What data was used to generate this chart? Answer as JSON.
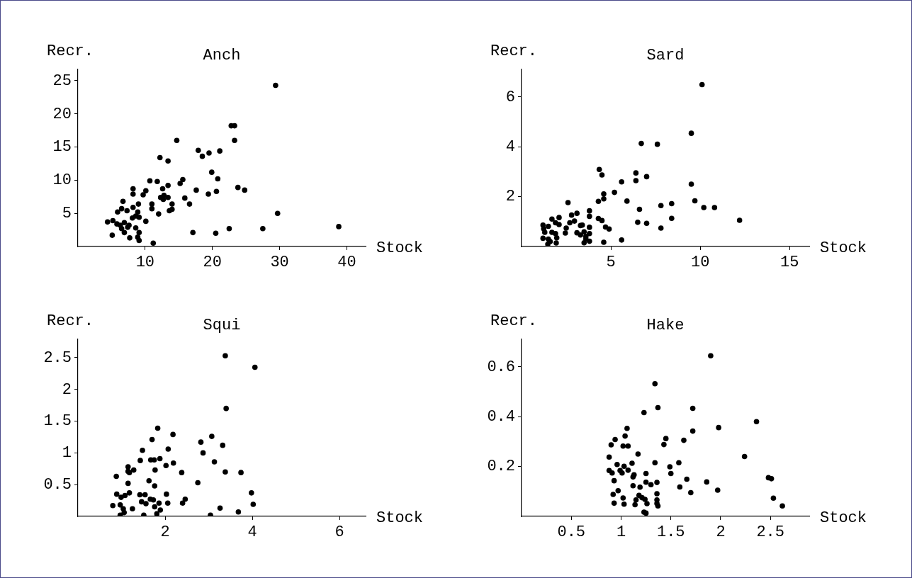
{
  "chart_data": [
    {
      "type": "scatter",
      "title": "Anch",
      "xlabel": "Stock",
      "ylabel": "Recr.",
      "color": "#000000",
      "marker": "circle",
      "xlim": [
        0,
        42.8
      ],
      "ylim": [
        0,
        26.7
      ],
      "xticks": [
        10,
        20,
        30,
        40
      ],
      "yticks": [
        5,
        10,
        15,
        20,
        25
      ],
      "x": [
        29.4,
        22.8,
        23.3,
        23.3,
        14.7,
        17.9,
        18.5,
        19.5,
        21.1,
        12.2,
        13.4,
        19.9,
        20.8,
        10.7,
        11.8,
        15.2,
        15.6,
        13.4,
        12.6,
        8.2,
        8.2,
        10.1,
        9.7,
        23.8,
        24.8,
        17.6,
        19.4,
        20.6,
        12.3,
        12.8,
        13.4,
        12.7,
        15.9,
        16.6,
        6.7,
        9.0,
        11.0,
        11.0,
        14.0,
        13.6,
        14.0,
        12.0,
        8.2,
        5.9,
        6.5,
        7.3,
        8.9,
        4.4,
        5.2,
        5.8,
        6.3,
        6.9,
        7.6,
        8.1,
        8.6,
        9.1,
        10.1,
        6.5,
        7.4,
        8.6,
        5.1,
        6.9,
        9.1,
        7.7,
        8.9,
        17.1,
        20.5,
        22.5,
        27.5,
        29.7,
        38.8,
        9.1,
        11.2
      ],
      "values": [
        24.3,
        18.2,
        18.2,
        16.0,
        16.0,
        14.5,
        13.6,
        14.1,
        14.4,
        13.4,
        12.9,
        11.2,
        10.2,
        9.9,
        9.8,
        9.5,
        10.1,
        9.2,
        8.7,
        8.7,
        7.9,
        8.4,
        7.8,
        8.9,
        8.5,
        8.5,
        7.9,
        8.3,
        7.4,
        7.7,
        7.4,
        7.1,
        7.3,
        6.4,
        6.8,
        6.4,
        6.4,
        5.7,
        6.4,
        5.4,
        5.6,
        4.9,
        5.9,
        5.2,
        5.7,
        5.4,
        5.2,
        3.7,
        3.9,
        3.4,
        3.2,
        3.6,
        3.2,
        4.3,
        4.6,
        4.4,
        3.8,
        2.7,
        2.9,
        2.8,
        1.7,
        2.1,
        2.1,
        1.3,
        1.4,
        2.1,
        2.0,
        2.7,
        2.7,
        5.0,
        3.0,
        0.9,
        0.5
      ]
    },
    {
      "type": "scatter",
      "title": "Sard",
      "xlabel": "Stock",
      "ylabel": "Recr.",
      "color": "#000000",
      "marker": "circle",
      "xlim": [
        0,
        16.1
      ],
      "ylim": [
        0,
        7.1
      ],
      "xticks": [
        5,
        10,
        15
      ],
      "yticks": [
        2,
        4,
        6
      ],
      "x": [
        10.1,
        9.5,
        6.7,
        7.6,
        4.35,
        4.5,
        6.4,
        6.4,
        7.0,
        5.6,
        9.5,
        5.2,
        4.6,
        4.6,
        4.3,
        5.9,
        9.7,
        2.6,
        7.8,
        8.4,
        10.2,
        10.8,
        6.6,
        3.8,
        3.8,
        3.1,
        2.8,
        2.1,
        1.7,
        4.3,
        4.5,
        8.4,
        12.2,
        6.5,
        7.0,
        2.7,
        1.9,
        2.1,
        2.96,
        3.3,
        3.4,
        1.2,
        1.5,
        2.5,
        4.7,
        4.9,
        7.8,
        3.8,
        1.24,
        1.3,
        1.7,
        1.9,
        2.45,
        3.1,
        3.5,
        3.8,
        3.3,
        3.6,
        1.2,
        1.5,
        1.97,
        3.6,
        5.6,
        1.47,
        1.94,
        3.8,
        4.6,
        1.6,
        3.5
      ],
      "values": [
        6.49,
        4.54,
        4.13,
        4.1,
        3.09,
        2.87,
        2.95,
        2.64,
        2.8,
        2.59,
        2.5,
        2.17,
        2.11,
        1.91,
        1.81,
        1.82,
        1.83,
        1.76,
        1.64,
        1.72,
        1.56,
        1.56,
        1.49,
        1.43,
        1.21,
        1.33,
        1.26,
        1.16,
        1.1,
        1.12,
        1.04,
        1.13,
        1.05,
        0.97,
        0.93,
        0.95,
        0.95,
        0.88,
        1.02,
        0.84,
        0.86,
        0.86,
        0.81,
        0.74,
        0.78,
        0.7,
        0.74,
        0.77,
        0.71,
        0.57,
        0.57,
        0.52,
        0.54,
        0.55,
        0.59,
        0.52,
        0.46,
        0.4,
        0.33,
        0.3,
        0.35,
        0.3,
        0.26,
        0.09,
        0.14,
        0.21,
        0.17,
        0.2,
        0.15
      ]
    },
    {
      "type": "scatter",
      "title": "Squi",
      "xlabel": "Stock",
      "ylabel": "Recr.",
      "color": "#000000",
      "marker": "circle",
      "xlim": [
        0,
        6.6
      ],
      "ylim": [
        0,
        2.79
      ],
      "xticks": [
        2,
        4,
        6
      ],
      "yticks": [
        0.5,
        1,
        1.5,
        2,
        2.5
      ],
      "x": [
        3.38,
        4.06,
        3.4,
        1.83,
        2.18,
        3.07,
        1.7,
        2.82,
        3.32,
        1.48,
        2.07,
        2.87,
        1.43,
        1.67,
        1.75,
        1.88,
        2.19,
        3.13,
        2.02,
        1.15,
        1.15,
        1.18,
        1.28,
        1.77,
        2.38,
        3.38,
        3.74,
        0.88,
        1.15,
        1.63,
        1.76,
        2.75,
        0.89,
        0.99,
        1.08,
        1.18,
        1.42,
        1.54,
        2.03,
        3.98,
        1.46,
        1.56,
        1.66,
        1.73,
        1.86,
        2.06,
        2.4,
        2.46,
        0.8,
        0.97,
        1.04,
        1.25,
        1.76,
        1.89,
        3.26,
        4.02,
        3.68,
        1.06,
        0.97,
        1.51,
        1.81,
        3.04
      ],
      "values": [
        2.53,
        2.35,
        1.7,
        1.39,
        1.29,
        1.26,
        1.21,
        1.17,
        1.12,
        1.04,
        1.06,
        1.0,
        0.88,
        0.89,
        0.89,
        0.91,
        0.84,
        0.86,
        0.8,
        0.78,
        0.71,
        0.69,
        0.73,
        0.73,
        0.69,
        0.7,
        0.69,
        0.63,
        0.52,
        0.56,
        0.48,
        0.53,
        0.35,
        0.3,
        0.33,
        0.37,
        0.34,
        0.34,
        0.35,
        0.37,
        0.23,
        0.2,
        0.27,
        0.26,
        0.21,
        0.21,
        0.21,
        0.27,
        0.17,
        0.18,
        0.12,
        0.12,
        0.15,
        0.1,
        0.13,
        0.19,
        0.07,
        0.06,
        0.02,
        0.02,
        0.04,
        0.02
      ]
    },
    {
      "type": "scatter",
      "title": "Hake",
      "xlabel": "Stock",
      "ylabel": "Recr.",
      "color": "#000000",
      "marker": "circle",
      "xlim": [
        0,
        2.89
      ],
      "ylim": [
        0,
        0.71
      ],
      "xticks": [
        0.5,
        1,
        1.5,
        2,
        2.5
      ],
      "yticks": [
        0.2,
        0.4,
        0.6
      ],
      "x": [
        1.9,
        1.34,
        1.37,
        1.23,
        1.72,
        2.36,
        1.06,
        1.98,
        1.04,
        1.72,
        0.94,
        1.45,
        0.9,
        1.02,
        1.07,
        1.43,
        1.63,
        1.17,
        0.88,
        2.24,
        1.34,
        1.58,
        1.11,
        0.96,
        1.03,
        0.88,
        0.91,
        0.99,
        1.01,
        1.07,
        1.49,
        1.5,
        1.13,
        1.12,
        1.25,
        2.48,
        2.51,
        0.93,
        1.66,
        1.86,
        1.25,
        1.3,
        1.36,
        1.12,
        1.19,
        1.59,
        0.97,
        1.97,
        1.7,
        0.92,
        1.18,
        1.36,
        1.21,
        1.24,
        1.02,
        2.53,
        1.15,
        1.26,
        0.93,
        1.03,
        1.14,
        1.36,
        1.36,
        1.37,
        2.62,
        1.23,
        1.25
      ],
      "values": [
        0.644,
        0.532,
        0.436,
        0.416,
        0.433,
        0.38,
        0.353,
        0.356,
        0.322,
        0.342,
        0.308,
        0.312,
        0.287,
        0.282,
        0.282,
        0.288,
        0.305,
        0.25,
        0.238,
        0.24,
        0.215,
        0.215,
        0.213,
        0.208,
        0.201,
        0.184,
        0.174,
        0.184,
        0.174,
        0.185,
        0.199,
        0.172,
        0.167,
        0.158,
        0.172,
        0.155,
        0.151,
        0.143,
        0.149,
        0.138,
        0.137,
        0.127,
        0.136,
        0.123,
        0.117,
        0.118,
        0.103,
        0.105,
        0.095,
        0.088,
        0.084,
        0.091,
        0.075,
        0.068,
        0.074,
        0.073,
        0.066,
        0.051,
        0.053,
        0.049,
        0.047,
        0.066,
        0.052,
        0.042,
        0.042,
        0.017,
        0.013
      ]
    }
  ]
}
